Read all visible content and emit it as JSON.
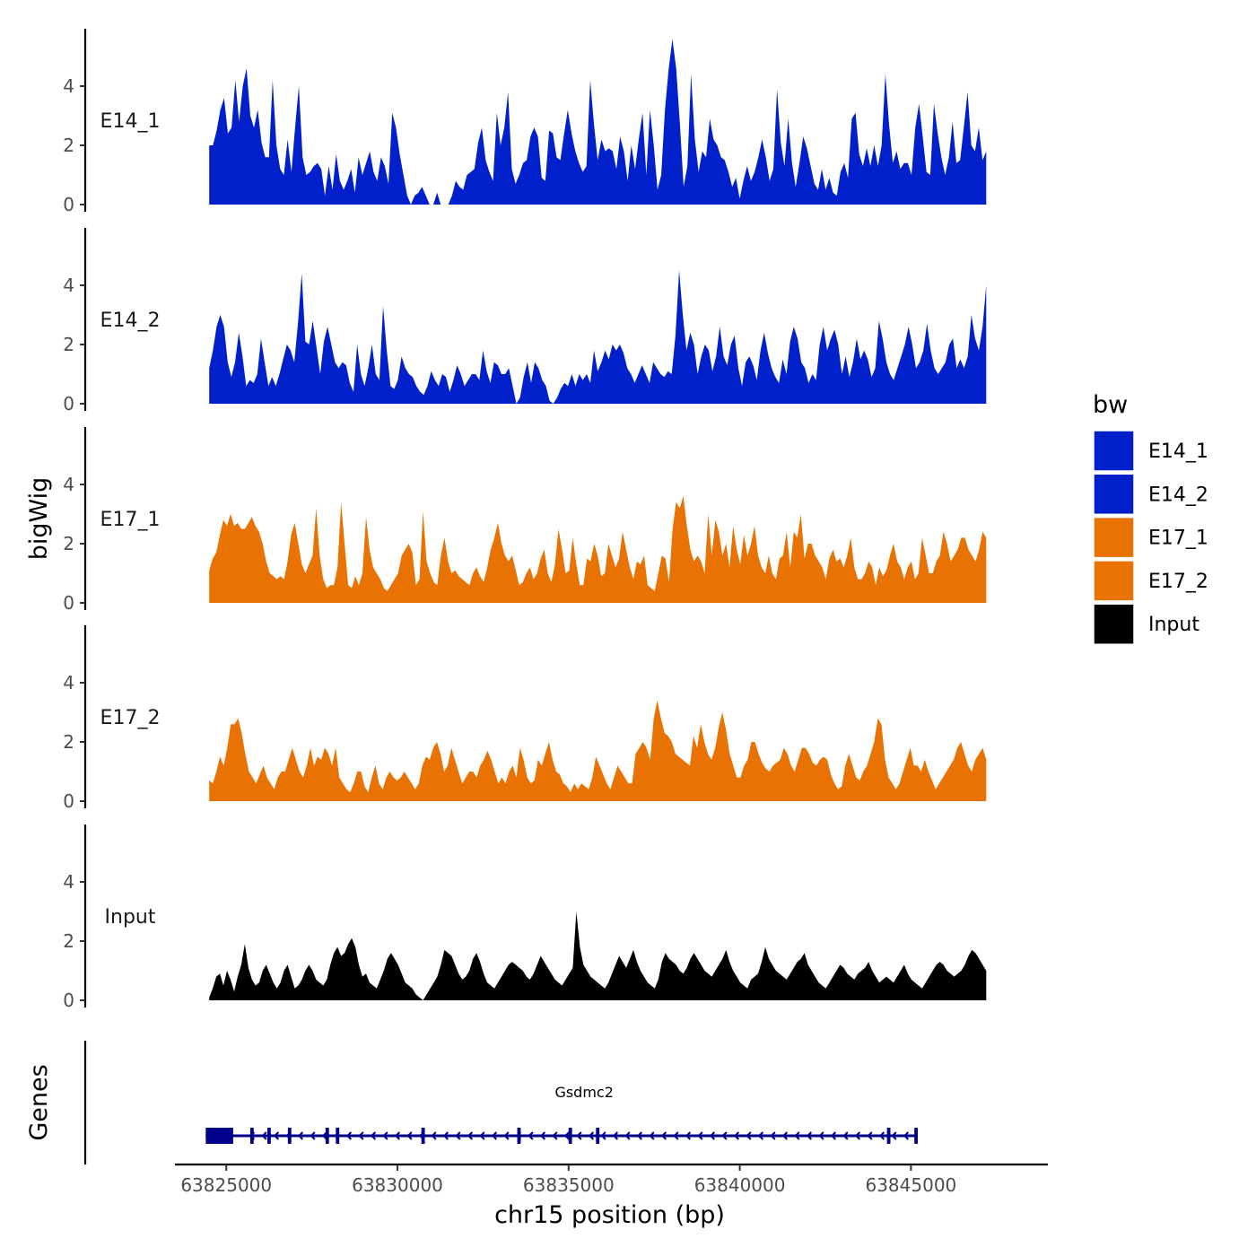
{
  "chart_data": {
    "type": "area",
    "chromosome": "chr15",
    "xlabel": "chr15 position (bp)",
    "ylabel": "bigWig",
    "genes_ylabel": "Genes",
    "xlim": [
      63823500,
      63849000
    ],
    "region": [
      63824500,
      63847200
    ],
    "ylim": [
      0,
      6
    ],
    "yticks": [
      0,
      2,
      4
    ],
    "xticks": [
      63825000,
      63830000,
      63835000,
      63840000,
      63845000
    ],
    "xtick_labels": [
      "63825000",
      "63830000",
      "63835000",
      "63840000",
      "63845000"
    ],
    "legend": {
      "title": "bw",
      "position": "right",
      "entries": [
        {
          "label": "E14_1",
          "color": "#0020cc"
        },
        {
          "label": "E14_2",
          "color": "#0020cc"
        },
        {
          "label": "E17_1",
          "color": "#e87303"
        },
        {
          "label": "E17_2",
          "color": "#e87303"
        },
        {
          "label": "Input",
          "color": "#000000"
        }
      ]
    },
    "tracks": [
      {
        "name": "E14_1",
        "label": "E14_1",
        "color": "#0020cc",
        "values": [
          2.0,
          2.0,
          2.5,
          3.2,
          3.6,
          2.4,
          2.6,
          4.2,
          2.8,
          4.0,
          4.6,
          3.0,
          2.6,
          3.2,
          2.1,
          1.6,
          1.6,
          4.2,
          2.0,
          1.2,
          1.0,
          2.2,
          1.1,
          2.6,
          4.0,
          1.6,
          1.0,
          1.1,
          1.3,
          1.4,
          1.2,
          0.3,
          1.3,
          0.5,
          1.7,
          0.8,
          0.5,
          0.8,
          1.2,
          0.4,
          1.6,
          1.0,
          1.4,
          1.8,
          1.1,
          0.8,
          1.6,
          1.3,
          0.7,
          3.1,
          2.6,
          1.7,
          1.0,
          0.3,
          0.0,
          0.3,
          0.4,
          0.6,
          0.3,
          0.0,
          0.0,
          0.4,
          0.0,
          0.0,
          0.0,
          0.3,
          0.8,
          0.6,
          0.5,
          1.0,
          1.1,
          1.2,
          2.1,
          2.6,
          1.5,
          1.1,
          0.8,
          3.1,
          2.0,
          2.6,
          3.8,
          1.2,
          0.7,
          1.0,
          1.4,
          1.5,
          2.3,
          2.6,
          2.3,
          0.9,
          0.8,
          2.5,
          2.4,
          1.6,
          1.5,
          2.4,
          3.2,
          2.4,
          1.8,
          1.4,
          1.1,
          1.3,
          4.2,
          2.7,
          1.5,
          2.2,
          1.8,
          1.9,
          1.8,
          1.2,
          2.3,
          1.8,
          0.8,
          2.0,
          1.2,
          2.2,
          3.1,
          1.0,
          3.2,
          2.0,
          0.5,
          1.0,
          3.2,
          4.6,
          5.6,
          4.6,
          2.7,
          0.6,
          1.3,
          4.4,
          2.2,
          1.1,
          1.8,
          1.6,
          2.9,
          2.2,
          2.0,
          1.6,
          1.5,
          1.1,
          0.6,
          0.9,
          0.2,
          0.8,
          1.3,
          0.8,
          1.1,
          1.6,
          2.2,
          1.6,
          0.8,
          1.2,
          3.9,
          2.1,
          1.3,
          2.9,
          1.4,
          0.6,
          1.4,
          2.3,
          1.9,
          1.3,
          0.7,
          0.5,
          1.2,
          0.5,
          0.9,
          0.4,
          0.3,
          1.1,
          1.4,
          0.9,
          2.9,
          3.1,
          1.7,
          1.3,
          1.9,
          1.3,
          2.0,
          1.3,
          2.0,
          4.4,
          2.7,
          1.4,
          1.8,
          1.2,
          1.4,
          1.4,
          1.0,
          2.6,
          3.4,
          2.3,
          1.1,
          1.0,
          3.4,
          2.4,
          1.6,
          1.0,
          1.6,
          2.8,
          1.4,
          1.5,
          2.6,
          3.8,
          2.0,
          1.8,
          2.6,
          1.5,
          1.8
        ]
      },
      {
        "name": "E14_2",
        "label": "E14_2",
        "color": "#0020cc",
        "values": [
          1.2,
          1.8,
          2.6,
          3.0,
          2.6,
          1.4,
          0.9,
          1.4,
          2.4,
          1.6,
          0.6,
          0.8,
          0.7,
          1.0,
          2.2,
          1.4,
          0.6,
          0.9,
          0.6,
          1.0,
          1.5,
          2.0,
          1.8,
          1.4,
          2.7,
          4.4,
          2.1,
          2.0,
          2.8,
          1.9,
          1.0,
          2.1,
          2.6,
          2.0,
          1.4,
          1.2,
          1.4,
          1.3,
          0.7,
          0.4,
          2.0,
          1.0,
          0.6,
          1.2,
          2.0,
          1.0,
          0.8,
          3.3,
          1.8,
          0.6,
          0.5,
          0.8,
          1.6,
          1.2,
          1.0,
          0.9,
          0.6,
          0.4,
          0.3,
          0.6,
          1.1,
          0.8,
          0.6,
          1.0,
          0.9,
          0.4,
          0.8,
          1.3,
          1.0,
          0.6,
          0.8,
          1.0,
          1.0,
          0.8,
          1.8,
          1.1,
          0.7,
          1.4,
          1.3,
          1.0,
          1.0,
          1.2,
          0.6,
          0.0,
          0.2,
          0.9,
          1.4,
          0.7,
          1.4,
          1.2,
          0.8,
          0.6,
          0.1,
          0.0,
          0.2,
          0.5,
          0.7,
          0.6,
          1.0,
          0.6,
          1.0,
          0.8,
          1.0,
          0.7,
          1.8,
          1.1,
          1.4,
          1.8,
          1.5,
          2.0,
          1.8,
          2.0,
          1.7,
          1.2,
          1.0,
          0.7,
          1.0,
          1.3,
          1.0,
          0.7,
          1.4,
          1.2,
          1.0,
          0.9,
          1.1,
          1.0,
          2.3,
          4.5,
          3.0,
          1.8,
          2.4,
          2.0,
          1.0,
          1.6,
          2.0,
          1.8,
          1.1,
          1.6,
          2.6,
          1.6,
          1.3,
          2.0,
          2.3,
          1.2,
          0.6,
          1.4,
          1.6,
          1.3,
          0.8,
          1.8,
          2.4,
          1.7,
          1.2,
          0.9,
          0.7,
          1.5,
          1.0,
          2.1,
          2.6,
          2.2,
          1.4,
          1.2,
          0.7,
          1.0,
          0.8,
          2.0,
          2.6,
          1.8,
          2.2,
          2.5,
          2.0,
          1.0,
          1.6,
          0.9,
          1.4,
          2.2,
          1.5,
          1.8,
          1.5,
          0.9,
          1.2,
          2.8,
          2.2,
          1.4,
          1.0,
          0.8,
          1.2,
          1.6,
          2.0,
          2.6,
          2.0,
          1.2,
          1.4,
          1.8,
          2.7,
          1.8,
          1.2,
          1.0,
          1.2,
          1.4,
          2.0,
          2.2,
          1.2,
          1.5,
          1.2,
          1.6,
          3.0,
          2.2,
          1.8,
          2.6,
          4.0
        ]
      },
      {
        "name": "E17_1",
        "label": "E17_1",
        "color": "#e87303",
        "values": [
          1.1,
          1.5,
          1.7,
          2.3,
          2.8,
          2.6,
          3.0,
          2.6,
          2.7,
          2.5,
          2.5,
          2.7,
          2.9,
          2.6,
          2.4,
          2.0,
          1.4,
          1.0,
          0.9,
          0.8,
          0.9,
          0.8,
          1.4,
          2.3,
          2.7,
          2.0,
          1.3,
          1.0,
          1.3,
          1.6,
          3.2,
          1.6,
          0.8,
          0.5,
          0.6,
          0.6,
          1.2,
          3.4,
          2.0,
          0.6,
          0.5,
          0.9,
          0.6,
          1.0,
          2.9,
          1.8,
          1.2,
          1.0,
          0.8,
          0.5,
          0.4,
          0.6,
          0.8,
          1.0,
          1.6,
          1.8,
          2.0,
          1.7,
          0.6,
          0.8,
          3.1,
          1.4,
          1.0,
          0.7,
          0.6,
          1.6,
          2.2,
          1.4,
          1.0,
          1.1,
          0.9,
          0.8,
          0.7,
          0.6,
          1.0,
          1.2,
          0.9,
          0.7,
          1.2,
          1.8,
          2.2,
          2.7,
          2.0,
          1.6,
          1.4,
          1.6,
          1.1,
          0.6,
          0.7,
          1.0,
          1.2,
          0.8,
          1.0,
          1.5,
          1.8,
          1.0,
          0.7,
          1.3,
          2.5,
          1.8,
          1.0,
          1.1,
          2.2,
          1.3,
          0.6,
          0.6,
          1.5,
          1.4,
          2.0,
          1.6,
          0.9,
          1.0,
          2.0,
          1.6,
          1.2,
          1.5,
          2.4,
          1.8,
          1.2,
          0.8,
          1.4,
          1.3,
          1.6,
          0.6,
          0.5,
          0.4,
          1.0,
          1.6,
          1.5,
          0.7,
          2.5,
          3.4,
          3.2,
          3.6,
          2.6,
          1.8,
          1.4,
          1.6,
          1.4,
          1.0,
          3.0,
          1.6,
          2.8,
          2.4,
          1.6,
          2.0,
          1.2,
          2.6,
          1.8,
          1.3,
          2.3,
          1.6,
          2.0,
          2.6,
          1.6,
          1.2,
          1.0,
          1.6,
          1.0,
          0.8,
          1.5,
          1.6,
          2.4,
          1.2,
          2.4,
          2.2,
          3.0,
          1.5,
          2.0,
          2.0,
          1.6,
          1.4,
          1.2,
          0.8,
          1.5,
          1.8,
          1.4,
          1.5,
          1.2,
          1.6,
          2.2,
          1.2,
          0.8,
          0.8,
          1.0,
          1.4,
          1.2,
          0.6,
          1.2,
          0.9,
          1.1,
          1.6,
          2.0,
          1.4,
          1.2,
          0.8,
          1.2,
          1.4,
          0.8,
          1.0,
          2.2,
          1.6,
          1.0,
          1.0,
          1.4,
          1.6,
          2.4,
          2.0,
          1.4,
          1.6,
          1.8,
          2.2,
          2.2,
          1.8,
          1.6,
          1.4,
          1.8,
          2.4,
          2.2
        ]
      },
      {
        "name": "E17_2",
        "label": "E17_2",
        "color": "#e87303",
        "values": [
          0.7,
          0.6,
          1.0,
          1.5,
          1.2,
          1.8,
          2.6,
          2.6,
          2.8,
          2.3,
          1.6,
          1.0,
          0.8,
          0.6,
          0.9,
          1.2,
          0.8,
          0.6,
          0.4,
          0.8,
          1.0,
          1.0,
          1.4,
          1.8,
          1.4,
          1.0,
          0.8,
          1.2,
          1.8,
          1.2,
          1.5,
          1.4,
          1.8,
          1.6,
          1.2,
          1.8,
          0.8,
          0.6,
          0.4,
          0.3,
          0.6,
          1.0,
          1.0,
          0.5,
          0.3,
          0.8,
          1.2,
          0.6,
          0.4,
          0.8,
          1.0,
          0.8,
          0.7,
          0.8,
          1.0,
          0.8,
          0.6,
          0.4,
          0.6,
          1.2,
          1.5,
          1.4,
          1.8,
          2.0,
          1.6,
          1.0,
          1.2,
          1.8,
          1.4,
          1.0,
          0.6,
          0.8,
          1.0,
          1.0,
          0.8,
          1.2,
          1.4,
          1.7,
          1.4,
          1.0,
          0.6,
          0.8,
          0.6,
          1.0,
          1.2,
          0.8,
          1.8,
          1.4,
          0.8,
          0.6,
          0.7,
          1.4,
          1.2,
          1.6,
          2.0,
          1.4,
          1.0,
          0.9,
          0.6,
          0.5,
          0.3,
          0.6,
          0.4,
          0.6,
          0.5,
          0.4,
          0.8,
          1.5,
          1.2,
          0.9,
          0.6,
          0.4,
          0.8,
          1.2,
          1.0,
          0.8,
          0.6,
          0.6,
          1.6,
          1.8,
          2.0,
          1.8,
          1.4,
          2.8,
          3.4,
          2.8,
          2.3,
          2.2,
          2.0,
          1.6,
          1.5,
          1.4,
          1.3,
          1.2,
          2.2,
          1.8,
          2.6,
          2.0,
          1.6,
          1.4,
          1.8,
          2.5,
          3.0,
          2.4,
          1.6,
          1.2,
          0.8,
          0.8,
          1.2,
          1.4,
          2.0,
          2.0,
          1.6,
          1.3,
          1.1,
          1.0,
          1.2,
          1.3,
          1.4,
          1.8,
          1.6,
          1.2,
          1.0,
          1.4,
          1.8,
          1.8,
          1.6,
          1.3,
          1.2,
          1.4,
          1.5,
          1.4,
          0.9,
          0.6,
          0.4,
          0.5,
          1.2,
          1.6,
          1.2,
          0.8,
          0.7,
          1.0,
          1.2,
          1.6,
          2.0,
          2.8,
          2.6,
          1.4,
          0.8,
          0.6,
          0.4,
          0.6,
          1.0,
          1.4,
          1.8,
          1.2,
          1.2,
          1.0,
          1.4,
          1.0,
          0.7,
          0.4,
          0.6,
          0.8,
          1.0,
          1.2,
          1.4,
          1.8,
          2.0,
          1.6,
          1.2,
          1.0,
          1.4,
          1.6,
          1.8,
          1.4
        ]
      },
      {
        "name": "Input",
        "label": "Input",
        "color": "#000000",
        "values": [
          0.1,
          0.4,
          0.8,
          0.9,
          0.5,
          1.0,
          0.7,
          0.3,
          0.8,
          1.2,
          1.9,
          1.1,
          0.7,
          0.5,
          0.6,
          1.0,
          1.2,
          0.9,
          0.6,
          0.4,
          0.6,
          1.0,
          1.2,
          0.8,
          0.4,
          0.5,
          0.7,
          1.0,
          1.2,
          1.0,
          0.7,
          0.6,
          0.5,
          0.7,
          1.2,
          1.6,
          1.8,
          1.5,
          1.6,
          1.9,
          2.1,
          1.8,
          1.2,
          0.8,
          0.9,
          0.6,
          0.5,
          0.4,
          0.7,
          1.0,
          1.4,
          1.6,
          1.4,
          1.2,
          0.9,
          0.6,
          0.5,
          0.4,
          0.2,
          0.1,
          0.0,
          0.2,
          0.4,
          0.6,
          0.8,
          1.2,
          1.7,
          1.6,
          1.5,
          1.2,
          0.9,
          0.7,
          0.8,
          1.0,
          1.4,
          1.6,
          1.3,
          0.9,
          0.6,
          0.5,
          0.4,
          0.6,
          0.8,
          1.0,
          1.2,
          1.3,
          1.2,
          1.1,
          1.0,
          0.8,
          0.7,
          0.9,
          1.2,
          1.5,
          1.3,
          1.1,
          0.9,
          0.7,
          0.6,
          0.5,
          0.7,
          0.9,
          1.1,
          3.0,
          1.8,
          1.2,
          1.0,
          0.8,
          0.7,
          0.6,
          0.5,
          0.4,
          0.6,
          0.9,
          1.2,
          1.5,
          1.3,
          1.1,
          1.4,
          1.7,
          1.3,
          1.0,
          0.8,
          0.6,
          0.5,
          0.4,
          0.7,
          1.3,
          1.6,
          1.4,
          1.3,
          1.2,
          1.0,
          0.9,
          1.1,
          1.4,
          1.6,
          1.4,
          1.2,
          1.0,
          0.9,
          0.8,
          1.0,
          1.2,
          1.4,
          1.7,
          1.3,
          1.0,
          0.8,
          0.6,
          0.5,
          0.4,
          0.7,
          0.8,
          0.9,
          1.3,
          1.8,
          1.4,
          1.2,
          1.0,
          0.9,
          0.8,
          0.7,
          0.9,
          1.1,
          1.3,
          1.4,
          1.6,
          1.2,
          1.0,
          0.8,
          0.6,
          0.5,
          0.4,
          0.6,
          0.8,
          1.0,
          1.2,
          1.1,
          0.9,
          0.8,
          0.7,
          0.9,
          1.0,
          1.1,
          1.3,
          1.0,
          0.8,
          0.6,
          0.7,
          0.8,
          0.7,
          0.6,
          0.8,
          1.0,
          1.2,
          0.9,
          0.7,
          0.6,
          0.5,
          0.4,
          0.6,
          0.8,
          1.0,
          1.2,
          1.3,
          1.2,
          1.0,
          0.9,
          0.8,
          0.9,
          1.0,
          1.2,
          1.5,
          1.7,
          1.6,
          1.4,
          1.2,
          1.0
        ]
      }
    ],
    "gene": {
      "name": "Gsdmc2",
      "start": 63824400,
      "end": 63845200,
      "strand": "-",
      "exons": [
        [
          63824400,
          63825200
        ],
        [
          63825700,
          63825800
        ],
        [
          63826200,
          63826300
        ],
        [
          63826800,
          63826900
        ],
        [
          63827900,
          63828000
        ],
        [
          63828200,
          63828300
        ],
        [
          63830700,
          63830800
        ],
        [
          63833500,
          63833600
        ],
        [
          63835000,
          63835100
        ],
        [
          63835800,
          63835900
        ],
        [
          63844300,
          63844400
        ],
        [
          63845100,
          63845200
        ]
      ]
    }
  }
}
